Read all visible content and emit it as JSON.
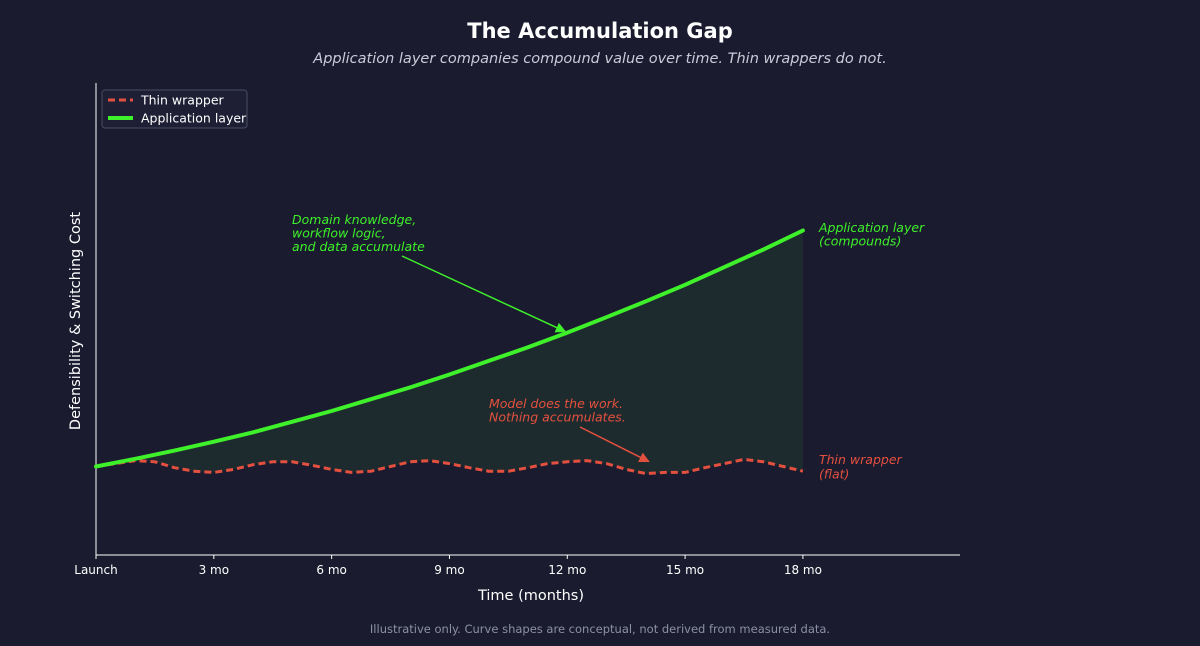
{
  "title": "The Accumulation Gap",
  "subtitle": "Application layer companies compound value over time. Thin wrappers do not.",
  "footnote": "Illustrative only. Curve shapes are conceptual, not derived from measured data.",
  "colors": {
    "background": "#1a1b2e",
    "application_layer": "#3ef12a",
    "thin_wrapper": "#e4503f",
    "fill_gap": "#1e2b2e",
    "axis": "#ffffff"
  },
  "chart_data": {
    "type": "line",
    "xlabel": "Time (months)",
    "ylabel": "Defensibility & Switching Cost",
    "xlim": [
      0,
      22
    ],
    "ylim": [
      -1.5,
      6.5
    ],
    "xticks": [
      0,
      3,
      6,
      9,
      12,
      15,
      18
    ],
    "xtick_labels": [
      "Launch",
      "3 mo",
      "6 mo",
      "9 mo",
      "12 mo",
      "15 mo",
      "18 mo"
    ],
    "yticks_shown": false,
    "grid": false,
    "legend_position": "top-left",
    "shaded_region": "between series, Launch to 18 mo",
    "series": [
      {
        "name": "Thin wrapper",
        "style": "dashed",
        "color": "#e4503f",
        "x": [
          0,
          0.5,
          1,
          1.5,
          2,
          2.5,
          3,
          3.5,
          4,
          4.5,
          5,
          5.5,
          6,
          6.5,
          7,
          7.5,
          8,
          8.5,
          9,
          9.5,
          10,
          10.5,
          11,
          11.5,
          12,
          12.5,
          13,
          13.5,
          14,
          14.5,
          15,
          15.5,
          16,
          16.5,
          17,
          17.5,
          18
        ],
        "y": [
          0.0,
          0.05,
          0.1,
          0.08,
          -0.02,
          -0.08,
          -0.1,
          -0.05,
          0.03,
          0.08,
          0.08,
          0.02,
          -0.05,
          -0.1,
          -0.08,
          0.0,
          0.08,
          0.1,
          0.05,
          -0.02,
          -0.08,
          -0.08,
          -0.02,
          0.05,
          0.08,
          0.1,
          0.05,
          -0.05,
          -0.12,
          -0.1,
          -0.1,
          -0.02,
          0.05,
          0.12,
          0.08,
          0.0,
          -0.08
        ]
      },
      {
        "name": "Application layer",
        "style": "solid",
        "color": "#3ef12a",
        "x": [
          0,
          1,
          2,
          3,
          4,
          5,
          6,
          7,
          8,
          9,
          10,
          11,
          12,
          13,
          14,
          15,
          16,
          17,
          18
        ],
        "y": [
          0.0,
          0.13,
          0.27,
          0.42,
          0.58,
          0.76,
          0.94,
          1.14,
          1.34,
          1.56,
          1.79,
          2.02,
          2.27,
          2.53,
          2.8,
          3.08,
          3.38,
          3.68,
          4.0
        ]
      }
    ],
    "annotations": [
      {
        "text": [
          "Domain knowledge,",
          "workflow logic,",
          "and data accumulate"
        ],
        "color": "#3ef12a",
        "arrow_to": [
          12,
          2.27
        ]
      },
      {
        "text": [
          "Model does the work.",
          "Nothing accumulates."
        ],
        "color": "#e4503f",
        "arrow_to": [
          14,
          0.05
        ]
      },
      {
        "text": [
          "Application layer",
          "(compounds)"
        ],
        "color": "#3ef12a"
      },
      {
        "text": [
          "Thin wrapper",
          "(flat)"
        ],
        "color": "#e4503f"
      }
    ]
  }
}
